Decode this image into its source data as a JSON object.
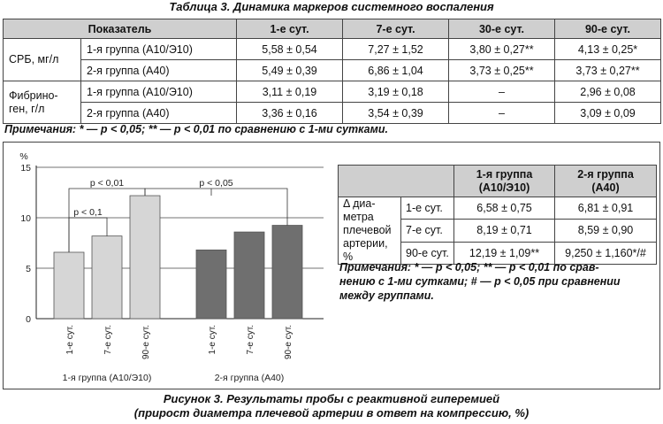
{
  "table3": {
    "title": "Таблица 3. Динамика маркеров системного воспаления",
    "header": {
      "indicator": "Показатель",
      "d1": "1-е сут.",
      "d7": "7-е сут.",
      "d30": "30-е сут.",
      "d90": "90-е сут."
    },
    "rows": [
      {
        "indicator": "СРБ, мг/л",
        "group": "1-я группа (А10/Э10)",
        "d1": "5,58 ± 0,54",
        "d7": "7,27 ± 1,52",
        "d30": "3,80 ± 0,27**",
        "d90": "4,13 ± 0,25*"
      },
      {
        "group": "2-я группа (А40)",
        "d1": "5,49 ± 0,39",
        "d7": "6,86 ± 1,04",
        "d30": "3,73 ± 0,25**",
        "d90": "3,73 ± 0,27**"
      },
      {
        "indicator_l1": "Фибрино-",
        "indicator_l2": "ген, г/л",
        "group": "1-я группа (А10/Э10)",
        "d1": "3,11 ± 0,19",
        "d7": "3,19 ± 0,18",
        "d30": "–",
        "d90": "2,96 ± 0,08"
      },
      {
        "group": "2-я группа (А40)",
        "d1": "3,36 ± 0,16",
        "d7": "3,54 ± 0,39",
        "d30": "–",
        "d90": "3,09 ± 0,09"
      }
    ],
    "note": "Примечания: * — p < 0,05; ** — p < 0,01 по сравнению с 1-ми сутками."
  },
  "chart_data": {
    "type": "bar",
    "unit": "%",
    "ylim": [
      0,
      15
    ],
    "yticks": [
      "0",
      "5",
      "10",
      "15"
    ],
    "grid": true,
    "groups": [
      {
        "name": "1-я группа (А10/Э10)",
        "categories": [
          "1-е сут.",
          "7-е сут.",
          "90-е сут."
        ],
        "values": [
          6.58,
          8.19,
          12.19
        ],
        "color": "#d6d6d6"
      },
      {
        "name": "2-я группа (А40)",
        "categories": [
          "1-е сут.",
          "7-е сут.",
          "90-е сут."
        ],
        "values": [
          6.81,
          8.59,
          9.25
        ],
        "color": "#6f6f6f"
      }
    ],
    "annotations": [
      "p < 0,01",
      "p < 0,1",
      "p < 0,05"
    ]
  },
  "table4": {
    "header": {
      "g1_l1": "1-я группа",
      "g1_l2": "(А10/Э10)",
      "g2_l1": "2-я группа",
      "g2_l2": "(А40)"
    },
    "row_label": [
      "Δ диа-",
      "метра",
      "плечевой",
      "артерии, %"
    ],
    "rows": [
      {
        "day": "1-е сут.",
        "g1": "6,58 ± 0,75",
        "g2": "6,81 ± 0,91"
      },
      {
        "day": "7-е сут.",
        "g1": "8,19 ± 0,71",
        "g2": "8,59 ± 0,90"
      },
      {
        "day": "90-е сут.",
        "g1": "12,19 ± 1,09**",
        "g2": "9,250 ± 1,160*/#"
      }
    ],
    "note_l1": "Примечания: * — p < 0,05; ** — p < 0,01 по срав-",
    "note_l2": "нению с 1-ми сутками; # — p < 0,05 при сравнении",
    "note_l3": "между группами."
  },
  "figure": {
    "caption_l1": "Рисунок 3. Результаты пробы с реактивной гиперемией",
    "caption_l2": "(прирост диаметра плечевой артерии в ответ на компрессию, %)"
  }
}
